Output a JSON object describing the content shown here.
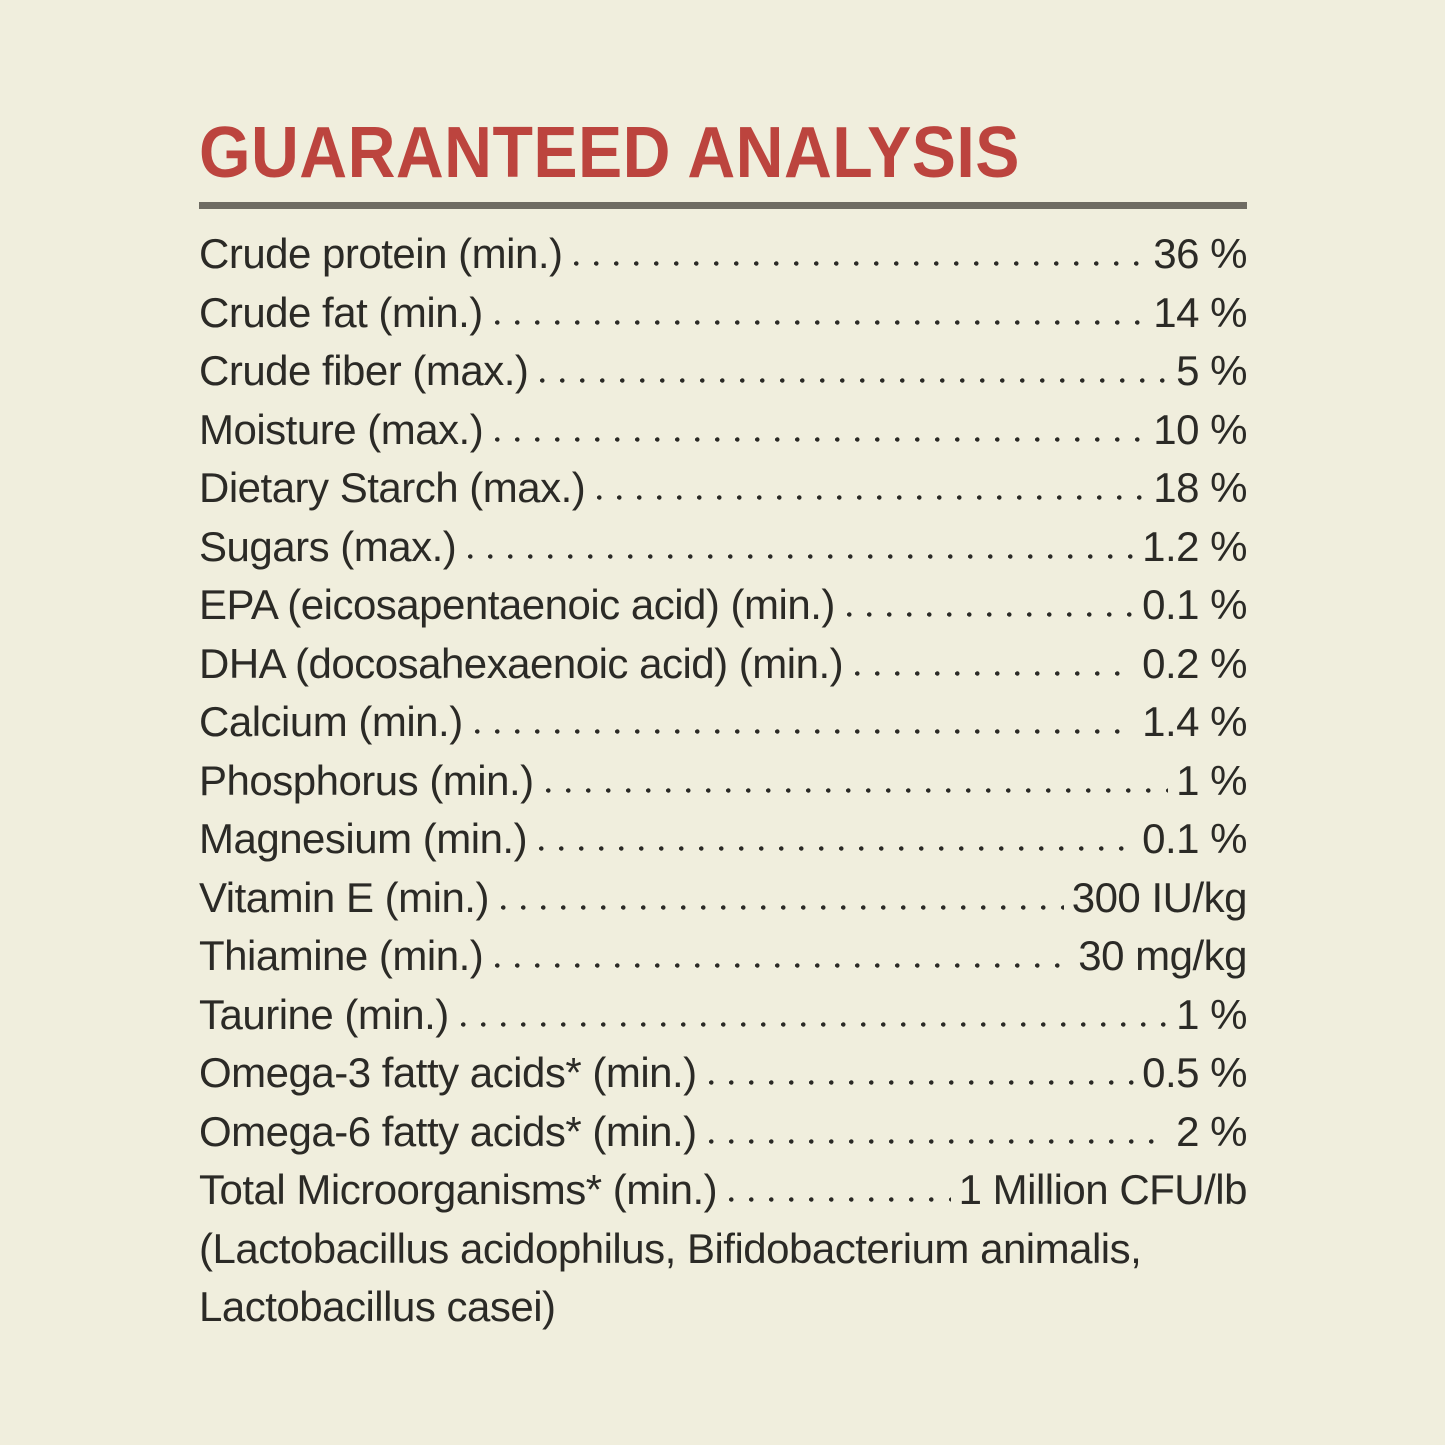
{
  "title": {
    "text": "GUARANTEED ANALYSIS"
  },
  "colors": {
    "background": "#f0eedd",
    "title": "#bc443e",
    "text": "#2b2a26",
    "divider": "#6e6b62"
  },
  "analysis": {
    "rows": [
      {
        "label": "Crude protein (min.)",
        "value": "36 %"
      },
      {
        "label": "Crude fat (min.)",
        "value": "14 %"
      },
      {
        "label": "Crude fiber (max.)",
        "value": "5 %"
      },
      {
        "label": "Moisture (max.)",
        "value": "10 %"
      },
      {
        "label": "Dietary Starch (max.)",
        "value": "18 %"
      },
      {
        "label": "Sugars (max.)",
        "value": "1.2 %"
      },
      {
        "label": "EPA (eicosapentaenoic acid) (min.)",
        "value": "0.1 %"
      },
      {
        "label": "DHA (docosahexaenoic acid) (min.)",
        "value": "0.2 %"
      },
      {
        "label": "Calcium (min.)",
        "value": "1.4 %"
      },
      {
        "label": "Phosphorus (min.)",
        "value": "1 %"
      },
      {
        "label": "Magnesium (min.)",
        "value": "0.1 %"
      },
      {
        "label": "Vitamin E (min.)",
        "value": "300 IU/kg"
      },
      {
        "label": "Thiamine (min.)",
        "value": "30 mg/kg"
      },
      {
        "label": "Taurine (min.)",
        "value": "1 %"
      },
      {
        "label": "Omega-3 fatty acids* (min.)",
        "value": "0.5 %"
      },
      {
        "label": "Omega-6 fatty acids* (min.)",
        "value": "2 %"
      },
      {
        "label": "Total Microorganisms* (min.)",
        "value": "1 Million CFU/lb"
      }
    ],
    "footnote_lines": [
      "(Lactobacillus acidophilus, Bifidobacterium animalis,",
      "Lactobacillus casei)"
    ]
  }
}
